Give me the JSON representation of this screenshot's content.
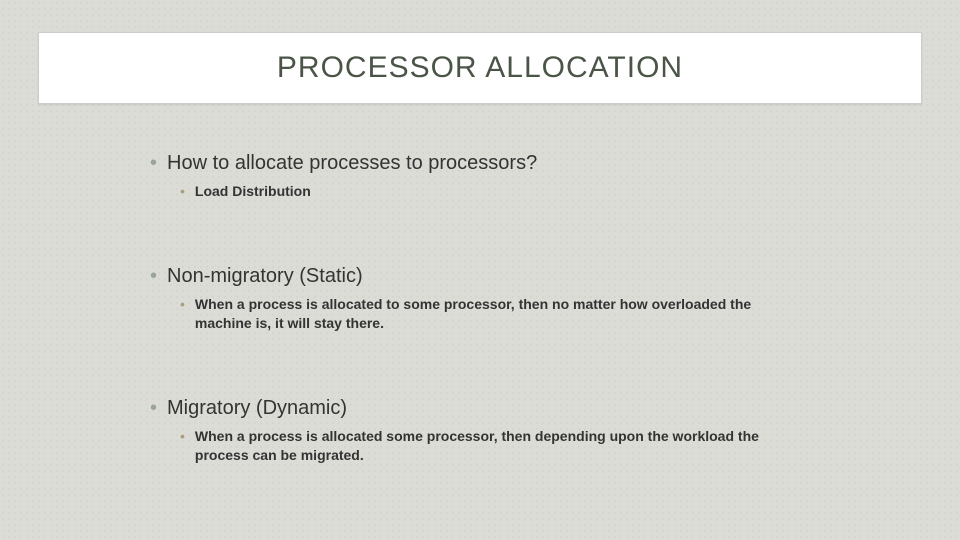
{
  "slide": {
    "title": "PROCESSOR ALLOCATION",
    "title_color": "#4a5548",
    "title_fontsize": 30,
    "title_box_bg": "#ffffff",
    "background_color": "#dcdcd6",
    "body_color": "#333333",
    "bullet_l1_color": "#9aa497",
    "bullet_l2_color": "#aa9d7a",
    "body_fontsize_l1": 20,
    "body_fontsize_l2": 14,
    "sections": [
      {
        "heading": "How to allocate processes to processors?",
        "sub": "Load Distribution"
      },
      {
        "heading": "Non-migratory (Static)",
        "sub": "When a process is allocated to some processor, then no matter how overloaded the machine is, it will stay there."
      },
      {
        "heading": "Migratory (Dynamic)",
        "sub": "When a process is allocated some processor, then  depending upon the workload the process can be migrated."
      }
    ]
  }
}
